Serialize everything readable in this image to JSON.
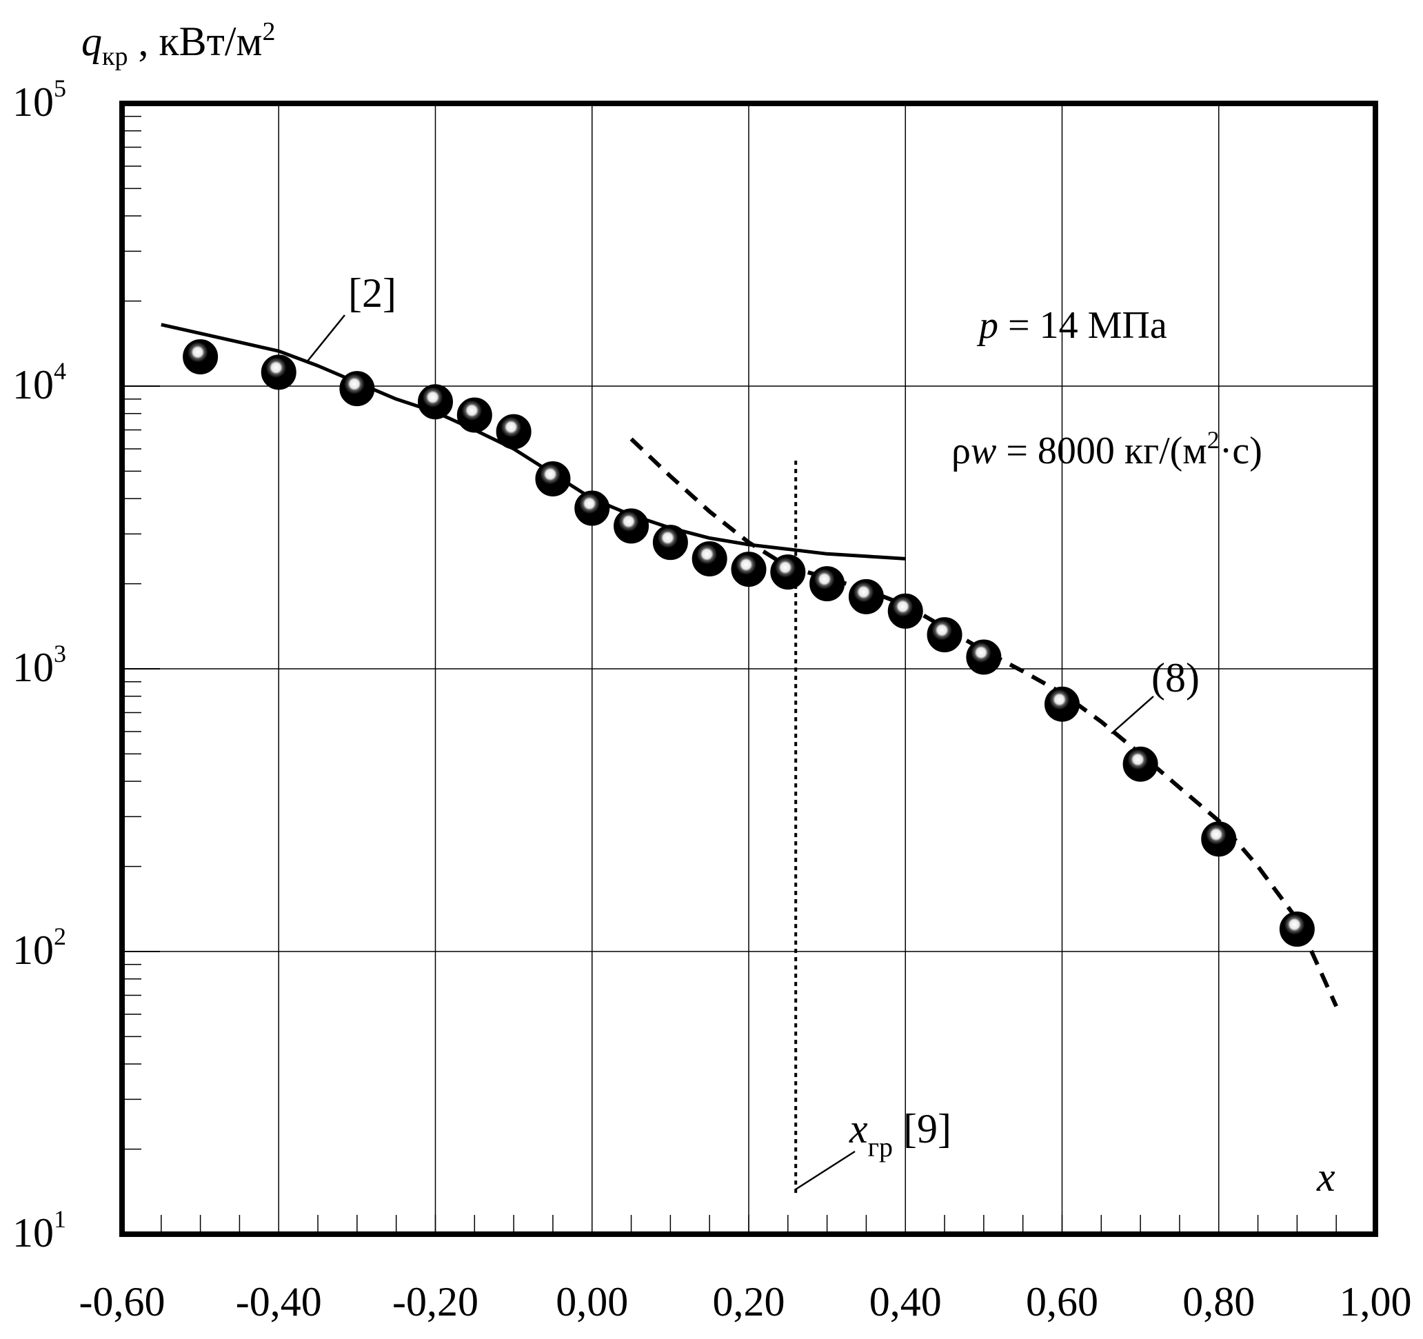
{
  "colors": {
    "axis": "#000000",
    "grid": "#000000",
    "marker_fill": "#000000",
    "marker_highlight": "#ffffff"
  },
  "chart_data": {
    "type": "scatter",
    "y_scale": "log",
    "grid": true,
    "xlim": [
      -0.6,
      1.0
    ],
    "ylim": [
      10,
      100000
    ],
    "x_ticks": [
      -0.6,
      -0.4,
      -0.2,
      0.0,
      0.2,
      0.4,
      0.6,
      0.8,
      1.0
    ],
    "x_tick_labels": [
      "-0,60",
      "-0,40",
      "-0,20",
      "0,00",
      "0,20",
      "0,40",
      "0,60",
      "0,80",
      "1,00"
    ],
    "y_ticks": [
      {
        "value": 10,
        "base": "10",
        "exp": "1"
      },
      {
        "value": 100,
        "base": "10",
        "exp": "2"
      },
      {
        "value": 1000,
        "base": "10",
        "exp": "3"
      },
      {
        "value": 10000,
        "base": "10",
        "exp": "4"
      },
      {
        "value": 100000,
        "base": "10",
        "exp": "5"
      }
    ],
    "ylabel": {
      "sym": "q",
      "sub": "кр",
      "rest": " , кВт/м",
      "sup": "2"
    },
    "xlabel": "x",
    "annotations": {
      "pressure": {
        "sym": "p",
        "rest": " = 14 МПа"
      },
      "mass_flux": {
        "rho": "ρ",
        "sym": "w",
        "rest": " = 8000 кг/(м",
        "sup": "2",
        "tail": "·с)"
      },
      "ref2": "[2]",
      "ref8": "(8)",
      "xgr": {
        "sym": "x",
        "sub": "гр",
        "rest": " [9]"
      }
    },
    "series": [
      {
        "marker": "ball",
        "x": [
          -0.5,
          -0.4,
          -0.3,
          -0.2,
          -0.15,
          -0.1,
          -0.05,
          0.0,
          0.05,
          0.1,
          0.15,
          0.2,
          0.25,
          0.3,
          0.35,
          0.4,
          0.45,
          0.5,
          0.6,
          0.7,
          0.8,
          0.9
        ],
        "y": [
          12700,
          11200,
          9800,
          8800,
          7900,
          6900,
          4700,
          3700,
          3200,
          2800,
          2450,
          2250,
          2200,
          2000,
          1800,
          1600,
          1320,
          1100,
          750,
          460,
          250,
          120
        ]
      },
      {
        "name": "[2]",
        "style": "solid",
        "x": [
          -0.55,
          -0.45,
          -0.4,
          -0.35,
          -0.3,
          -0.25,
          -0.2,
          -0.15,
          -0.1,
          -0.05,
          0.0,
          0.05,
          0.1,
          0.15,
          0.2,
          0.25,
          0.3,
          0.35,
          0.4
        ],
        "y": [
          16500,
          14300,
          13300,
          11800,
          10300,
          9000,
          8100,
          7000,
          6000,
          4900,
          4000,
          3500,
          3150,
          2900,
          2750,
          2650,
          2550,
          2500,
          2450
        ]
      },
      {
        "name": "(8)",
        "style": "dashed",
        "x": [
          0.05,
          0.1,
          0.15,
          0.2,
          0.25,
          0.3,
          0.35,
          0.4,
          0.45,
          0.5,
          0.55,
          0.6,
          0.65,
          0.7,
          0.75,
          0.8,
          0.85,
          0.9,
          0.95
        ],
        "y": [
          6500,
          4800,
          3600,
          2800,
          2300,
          2100,
          1900,
          1680,
          1400,
          1160,
          980,
          820,
          650,
          500,
          380,
          290,
          200,
          130,
          64
        ]
      },
      {
        "name": "xгр [9]",
        "style": "dotted-vertical",
        "x": [
          0.26,
          0.26
        ],
        "y": [
          14,
          5500
        ]
      }
    ]
  }
}
